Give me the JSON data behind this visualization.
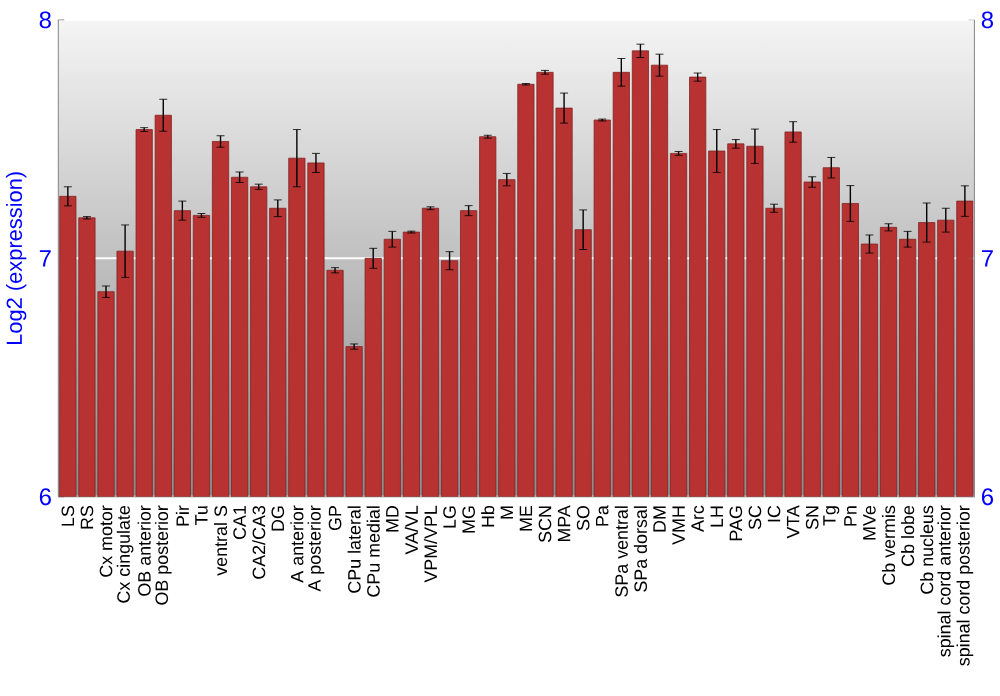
{
  "chart_data": {
    "type": "bar",
    "ylabel": "Log2 (expression)",
    "categories": [
      "LS",
      "RS",
      "Cx motor",
      "Cx cingulate",
      "OB anterior",
      "OB posterior",
      "Pir",
      "Tu",
      "ventral S",
      "CA1",
      "CA2/CA3",
      "DG",
      "A anterior",
      "A posterior",
      "GP",
      "CPu lateral",
      "CPu medial",
      "MD",
      "VA/VL",
      "VPM/VPL",
      "LG",
      "MG",
      "Hb",
      "M",
      "ME",
      "SCN",
      "MPA",
      "SO",
      "Pa",
      "SPa ventral",
      "SPa dorsal",
      "DM",
      "VMH",
      "Arc",
      "LH",
      "PAG",
      "SC",
      "IC",
      "VTA",
      "SN",
      "Tg",
      "Pn",
      "MVe",
      "Cb vermis",
      "Cb lobe",
      "Cb nucleus",
      "spinal cord anterior",
      "spinal cord posterior"
    ],
    "values": [
      7.26,
      7.17,
      6.86,
      7.03,
      7.54,
      7.6,
      7.2,
      7.18,
      7.49,
      7.34,
      7.3,
      7.21,
      7.42,
      7.4,
      6.95,
      6.63,
      7.0,
      7.08,
      7.11,
      7.21,
      6.99,
      7.2,
      7.51,
      7.33,
      7.73,
      7.78,
      7.63,
      7.12,
      7.58,
      7.78,
      7.87,
      7.81,
      7.44,
      7.76,
      7.45,
      7.48,
      7.47,
      7.21,
      7.53,
      7.32,
      7.38,
      7.23,
      7.06,
      7.13,
      7.08,
      7.15,
      7.16,
      7.24
    ],
    "errors": [
      0.04,
      0.005,
      0.024,
      0.11,
      0.008,
      0.067,
      0.04,
      0.008,
      0.024,
      0.022,
      0.011,
      0.035,
      0.12,
      0.04,
      0.011,
      0.011,
      0.042,
      0.033,
      0.004,
      0.006,
      0.038,
      0.021,
      0.006,
      0.026,
      0.003,
      0.008,
      0.063,
      0.083,
      0.004,
      0.058,
      0.028,
      0.046,
      0.008,
      0.017,
      0.09,
      0.018,
      0.072,
      0.017,
      0.043,
      0.022,
      0.043,
      0.075,
      0.038,
      0.015,
      0.033,
      0.082,
      0.05,
      0.064
    ],
    "color": "#b83232",
    "ylim": [
      6,
      8
    ],
    "yticks": [
      6,
      7,
      8
    ],
    "y2lim": [
      6,
      8
    ],
    "y2ticks": [
      6,
      7,
      8
    ],
    "grid": "y"
  }
}
